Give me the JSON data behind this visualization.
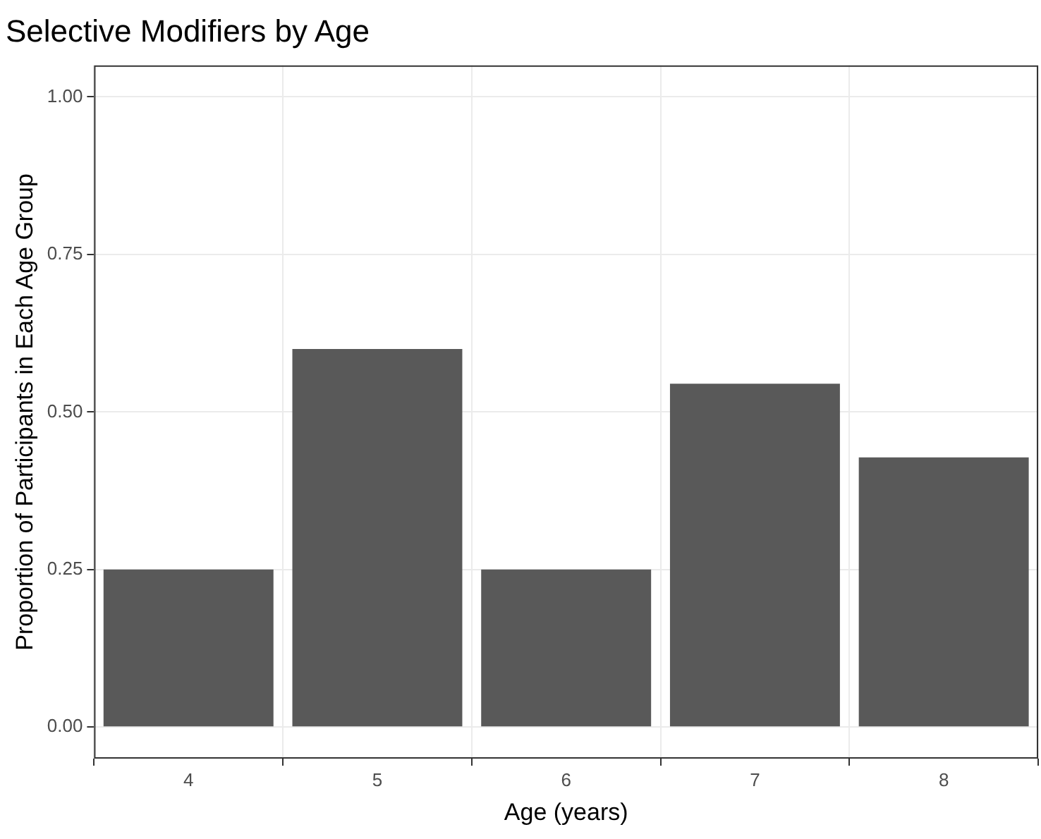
{
  "chart_data": {
    "type": "bar",
    "title": "Selective Modifiers by Age",
    "xlabel": "Age (years)",
    "ylabel": "Proportion of Participants in Each Age Group",
    "categories": [
      "4",
      "5",
      "6",
      "7",
      "8"
    ],
    "values": [
      0.25,
      0.6,
      0.25,
      0.545,
      0.428
    ],
    "color": "#595959",
    "ylim": [
      -0.05,
      1.05
    ],
    "yticks": [
      {
        "value": 0,
        "label": "0.00"
      },
      {
        "value": 0.25,
        "label": "0.25"
      },
      {
        "value": 0.5,
        "label": "0.50"
      },
      {
        "value": 0.75,
        "label": "0.75"
      },
      {
        "value": 1,
        "label": "1.00"
      }
    ],
    "grid": true,
    "legend": false
  }
}
